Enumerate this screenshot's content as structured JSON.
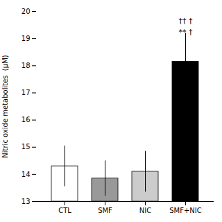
{
  "chart_data": {
    "type": "bar",
    "categories": [
      "CTL",
      "SMF",
      "NIC",
      "SMF+NIC"
    ],
    "values": [
      14.3,
      13.85,
      14.1,
      18.15
    ],
    "errors": [
      0.75,
      0.65,
      0.75,
      1.05
    ],
    "colors": [
      "#ffffff",
      "#999999",
      "#cccccc",
      "#000000"
    ],
    "ylabel": "Nitric oxide metabolites  (μM)",
    "ylim": [
      13,
      20
    ],
    "yticks": [
      13,
      14,
      15,
      16,
      17,
      18,
      19,
      20
    ],
    "annotations": [
      {
        "text": "†† †",
        "x": "SMF+NIC",
        "y": 19.55
      },
      {
        "text": "** †",
        "x": "SMF+NIC",
        "y": 19.15
      }
    ],
    "grid": false
  }
}
